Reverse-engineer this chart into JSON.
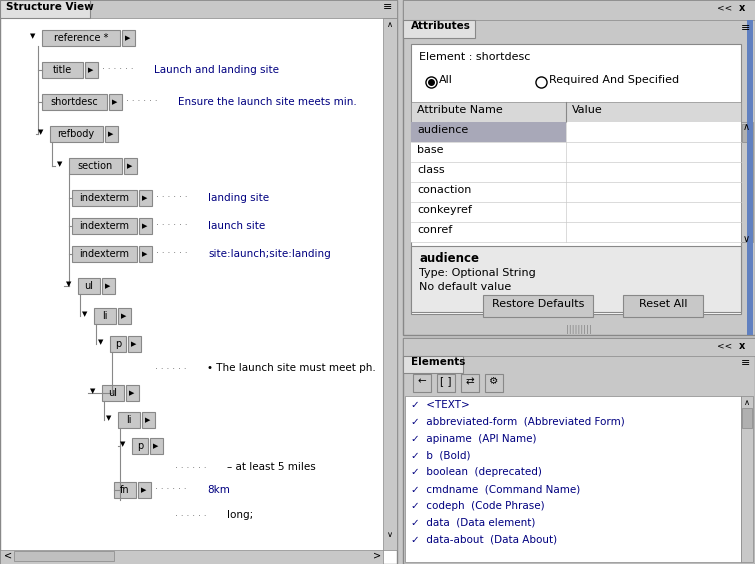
{
  "bg_color": "#c8c8c8",
  "panel_bg": "#c8c8c8",
  "white": "#ffffff",
  "light_gray": "#e8e8e8",
  "dark_text": "#000080",
  "black": "#000000",
  "tab_bg": "#d0d0d0",
  "selected_row_bg": "#a8a8b8",
  "scrollbar_thumb": "#a0a0a0",
  "title": "Structure View",
  "attr_title": "Attributes",
  "elem_title": "Elements",
  "element_label": "Element : shortdesc",
  "radio_all": "All",
  "radio_required": "Required And Specified",
  "attr_col1": "Attribute Name",
  "attr_col2": "Value",
  "attributes": [
    "audience",
    "base",
    "class",
    "conaction",
    "conkeyref",
    "conref"
  ],
  "attr_info_bold": "audience",
  "attr_info_line1": "Type: Optional String",
  "attr_info_line2": "No default value",
  "btn1": "Restore Defaults",
  "btn2": "Reset All",
  "elements_list": [
    "✓  <TEXT>",
    "✓  abbreviated-form  (Abbreviated Form)",
    "✓  apiname  (API Name)",
    "✓  b  (Bold)",
    "✓  boolean  (deprecated)",
    "✓  cmdname  (Command Name)",
    "✓  codeph  (Code Phrase)",
    "✓  data  (Data element)",
    "✓  data-about  (Data About)"
  ]
}
